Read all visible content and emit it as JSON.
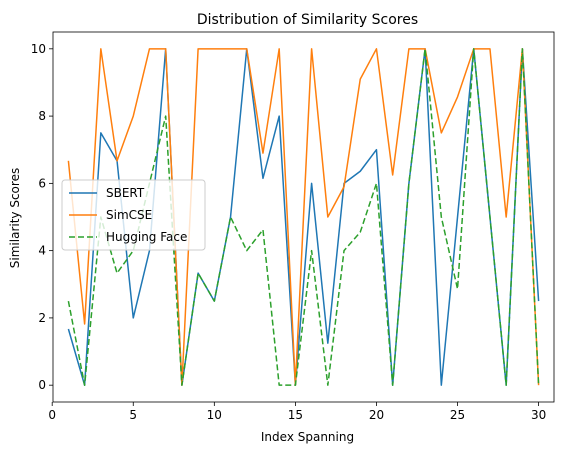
{
  "chart_data": {
    "type": "line",
    "title": "Distribution of Similarity Scores",
    "xlabel": "Index Spanning",
    "ylabel": "Similarity Scores",
    "xlim": [
      0.05,
      30.95
    ],
    "ylim": [
      -0.5,
      10.5
    ],
    "xticks": [
      0,
      5,
      10,
      15,
      20,
      25,
      30
    ],
    "yticks": [
      0,
      2,
      4,
      6,
      8,
      10
    ],
    "grid": false,
    "legend_position": "center-left",
    "x": [
      1,
      2,
      3,
      4,
      5,
      6,
      7,
      8,
      9,
      10,
      11,
      12,
      13,
      14,
      15,
      16,
      17,
      18,
      19,
      20,
      21,
      22,
      23,
      24,
      25,
      26,
      27,
      28,
      29,
      30
    ],
    "series": [
      {
        "name": "SBERT",
        "color": "#1f77b4",
        "style": "solid",
        "values": [
          1.67,
          0,
          7.5,
          6.67,
          2,
          4,
          10,
          0,
          3.33,
          2.5,
          5,
          10,
          6.15,
          8,
          0,
          6,
          1.25,
          6,
          6.36,
          7,
          0,
          6,
          10,
          0,
          5,
          10,
          5,
          0,
          10,
          2.5
        ]
      },
      {
        "name": "SimCSE",
        "color": "#ff7f0e",
        "style": "solid",
        "values": [
          6.67,
          1.82,
          10,
          6.67,
          8,
          10,
          10,
          0,
          10,
          10,
          10,
          10,
          6.9,
          10,
          0,
          10,
          5,
          5.9,
          9.1,
          10,
          6.25,
          10,
          10,
          7.5,
          8.57,
          10,
          10,
          5,
          10,
          0
        ]
      },
      {
        "name": "Hugging Face",
        "color": "#2ca02c",
        "style": "dashed",
        "values": [
          2.5,
          0,
          5,
          3.33,
          4,
          6,
          8,
          0,
          3.33,
          2.5,
          5,
          4,
          4.62,
          0,
          0,
          4,
          0,
          4,
          4.55,
          6,
          0,
          6,
          10,
          5,
          2.86,
          10,
          5,
          0,
          10,
          0
        ]
      }
    ]
  }
}
